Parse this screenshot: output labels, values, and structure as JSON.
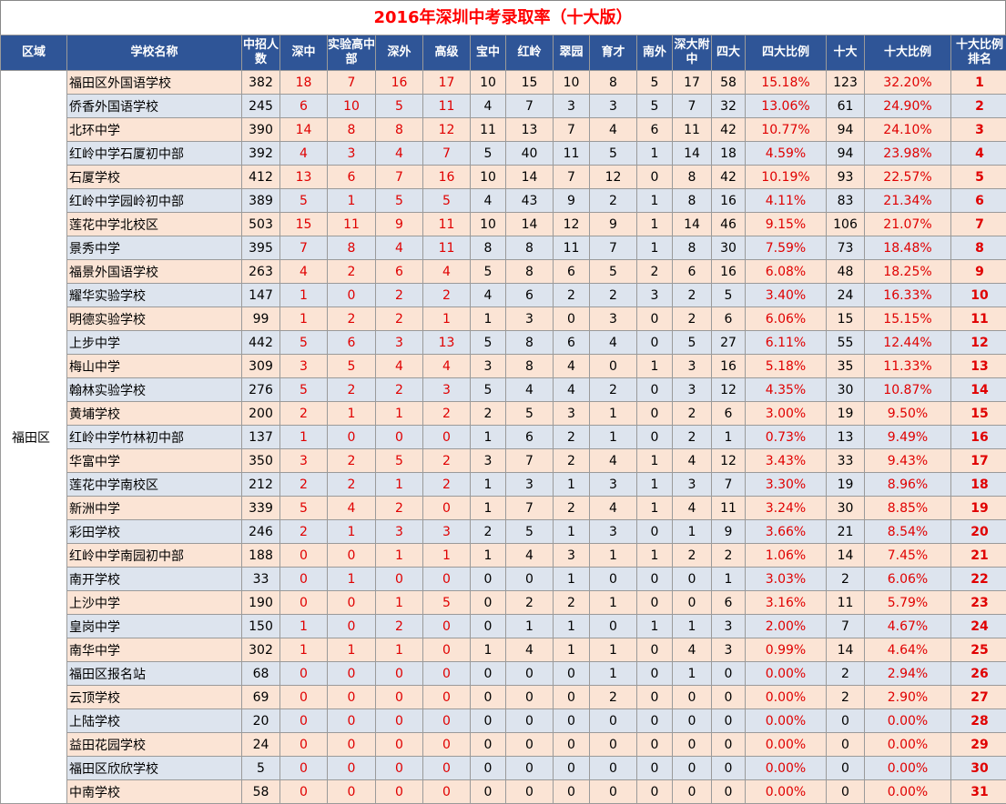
{
  "title": "2016年深圳中考录取率（十大版）",
  "headers": {
    "region": "区域",
    "school": "学校名称",
    "enroll": "中招人数",
    "shenzhong": "深中",
    "shiyan": "实验高中部",
    "shenwai": "深外",
    "gaoji": "高级",
    "baozhong": "宝中",
    "hongling": "红岭",
    "cuiyuan": "翠园",
    "yucai": "育才",
    "nanwai": "南外",
    "shenda": "深大附中",
    "sida": "四大",
    "sida_ratio": "四大比例",
    "shida": "十大",
    "shida_ratio": "十大比例",
    "rank": "十大比例排名"
  },
  "region": "福田区",
  "rows": [
    [
      "福田区外国语学校",
      "382",
      "18",
      "7",
      "16",
      "17",
      "10",
      "15",
      "10",
      "8",
      "5",
      "17",
      "58",
      "15.18%",
      "123",
      "32.20%",
      "1"
    ],
    [
      "侨香外国语学校",
      "245",
      "6",
      "10",
      "5",
      "11",
      "4",
      "7",
      "3",
      "3",
      "5",
      "7",
      "32",
      "13.06%",
      "61",
      "24.90%",
      "2"
    ],
    [
      "北环中学",
      "390",
      "14",
      "8",
      "8",
      "12",
      "11",
      "13",
      "7",
      "4",
      "6",
      "11",
      "42",
      "10.77%",
      "94",
      "24.10%",
      "3"
    ],
    [
      "红岭中学石厦初中部",
      "392",
      "4",
      "3",
      "4",
      "7",
      "5",
      "40",
      "11",
      "5",
      "1",
      "14",
      "18",
      "4.59%",
      "94",
      "23.98%",
      "4"
    ],
    [
      "石厦学校",
      "412",
      "13",
      "6",
      "7",
      "16",
      "10",
      "14",
      "7",
      "12",
      "0",
      "8",
      "42",
      "10.19%",
      "93",
      "22.57%",
      "5"
    ],
    [
      "红岭中学园岭初中部",
      "389",
      "5",
      "1",
      "5",
      "5",
      "4",
      "43",
      "9",
      "2",
      "1",
      "8",
      "16",
      "4.11%",
      "83",
      "21.34%",
      "6"
    ],
    [
      "莲花中学北校区",
      "503",
      "15",
      "11",
      "9",
      "11",
      "10",
      "14",
      "12",
      "9",
      "1",
      "14",
      "46",
      "9.15%",
      "106",
      "21.07%",
      "7"
    ],
    [
      "景秀中学",
      "395",
      "7",
      "8",
      "4",
      "11",
      "8",
      "8",
      "11",
      "7",
      "1",
      "8",
      "30",
      "7.59%",
      "73",
      "18.48%",
      "8"
    ],
    [
      "福景外国语学校",
      "263",
      "4",
      "2",
      "6",
      "4",
      "5",
      "8",
      "6",
      "5",
      "2",
      "6",
      "16",
      "6.08%",
      "48",
      "18.25%",
      "9"
    ],
    [
      "耀华实验学校",
      "147",
      "1",
      "0",
      "2",
      "2",
      "4",
      "6",
      "2",
      "2",
      "3",
      "2",
      "5",
      "3.40%",
      "24",
      "16.33%",
      "10"
    ],
    [
      "明德实验学校",
      "99",
      "1",
      "2",
      "2",
      "1",
      "1",
      "3",
      "0",
      "3",
      "0",
      "2",
      "6",
      "6.06%",
      "15",
      "15.15%",
      "11"
    ],
    [
      "上步中学",
      "442",
      "5",
      "6",
      "3",
      "13",
      "5",
      "8",
      "6",
      "4",
      "0",
      "5",
      "27",
      "6.11%",
      "55",
      "12.44%",
      "12"
    ],
    [
      "梅山中学",
      "309",
      "3",
      "5",
      "4",
      "4",
      "3",
      "8",
      "4",
      "0",
      "1",
      "3",
      "16",
      "5.18%",
      "35",
      "11.33%",
      "13"
    ],
    [
      "翰林实验学校",
      "276",
      "5",
      "2",
      "2",
      "3",
      "5",
      "4",
      "4",
      "2",
      "0",
      "3",
      "12",
      "4.35%",
      "30",
      "10.87%",
      "14"
    ],
    [
      "黄埔学校",
      "200",
      "2",
      "1",
      "1",
      "2",
      "2",
      "5",
      "3",
      "1",
      "0",
      "2",
      "6",
      "3.00%",
      "19",
      "9.50%",
      "15"
    ],
    [
      "红岭中学竹林初中部",
      "137",
      "1",
      "0",
      "0",
      "0",
      "1",
      "6",
      "2",
      "1",
      "0",
      "2",
      "1",
      "0.73%",
      "13",
      "9.49%",
      "16"
    ],
    [
      "华富中学",
      "350",
      "3",
      "2",
      "5",
      "2",
      "3",
      "7",
      "2",
      "4",
      "1",
      "4",
      "12",
      "3.43%",
      "33",
      "9.43%",
      "17"
    ],
    [
      "莲花中学南校区",
      "212",
      "2",
      "2",
      "1",
      "2",
      "1",
      "3",
      "1",
      "3",
      "1",
      "3",
      "7",
      "3.30%",
      "19",
      "8.96%",
      "18"
    ],
    [
      "新洲中学",
      "339",
      "5",
      "4",
      "2",
      "0",
      "1",
      "7",
      "2",
      "4",
      "1",
      "4",
      "11",
      "3.24%",
      "30",
      "8.85%",
      "19"
    ],
    [
      "彩田学校",
      "246",
      "2",
      "1",
      "3",
      "3",
      "2",
      "5",
      "1",
      "3",
      "0",
      "1",
      "9",
      "3.66%",
      "21",
      "8.54%",
      "20"
    ],
    [
      "红岭中学南园初中部",
      "188",
      "0",
      "0",
      "1",
      "1",
      "1",
      "4",
      "3",
      "1",
      "1",
      "2",
      "2",
      "1.06%",
      "14",
      "7.45%",
      "21"
    ],
    [
      "南开学校",
      "33",
      "0",
      "1",
      "0",
      "0",
      "0",
      "0",
      "1",
      "0",
      "0",
      "0",
      "1",
      "3.03%",
      "2",
      "6.06%",
      "22"
    ],
    [
      "上沙中学",
      "190",
      "0",
      "0",
      "1",
      "5",
      "0",
      "2",
      "2",
      "1",
      "0",
      "0",
      "6",
      "3.16%",
      "11",
      "5.79%",
      "23"
    ],
    [
      "皇岗中学",
      "150",
      "1",
      "0",
      "2",
      "0",
      "0",
      "1",
      "1",
      "0",
      "1",
      "1",
      "3",
      "2.00%",
      "7",
      "4.67%",
      "24"
    ],
    [
      "南华中学",
      "302",
      "1",
      "1",
      "1",
      "0",
      "1",
      "4",
      "1",
      "1",
      "0",
      "4",
      "3",
      "0.99%",
      "14",
      "4.64%",
      "25"
    ],
    [
      "福田区报名站",
      "68",
      "0",
      "0",
      "0",
      "0",
      "0",
      "0",
      "0",
      "1",
      "0",
      "1",
      "0",
      "0.00%",
      "2",
      "2.94%",
      "26"
    ],
    [
      "云顶学校",
      "69",
      "0",
      "0",
      "0",
      "0",
      "0",
      "0",
      "0",
      "2",
      "0",
      "0",
      "0",
      "0.00%",
      "2",
      "2.90%",
      "27"
    ],
    [
      "上陆学校",
      "20",
      "0",
      "0",
      "0",
      "0",
      "0",
      "0",
      "0",
      "0",
      "0",
      "0",
      "0",
      "0.00%",
      "0",
      "0.00%",
      "28"
    ],
    [
      "益田花园学校",
      "24",
      "0",
      "0",
      "0",
      "0",
      "0",
      "0",
      "0",
      "0",
      "0",
      "0",
      "0",
      "0.00%",
      "0",
      "0.00%",
      "29"
    ],
    [
      "福田区欣欣学校",
      "5",
      "0",
      "0",
      "0",
      "0",
      "0",
      "0",
      "0",
      "0",
      "0",
      "0",
      "0",
      "0.00%",
      "0",
      "0.00%",
      "30"
    ],
    [
      "中南学校",
      "58",
      "0",
      "0",
      "0",
      "0",
      "0",
      "0",
      "0",
      "0",
      "0",
      "0",
      "0",
      "0.00%",
      "0",
      "0.00%",
      "31"
    ]
  ],
  "colors": {
    "header_bg": "#2f5597",
    "row_odd": "#fbe4d5",
    "row_even": "#dde4ee",
    "accent_red": "#e00000"
  }
}
